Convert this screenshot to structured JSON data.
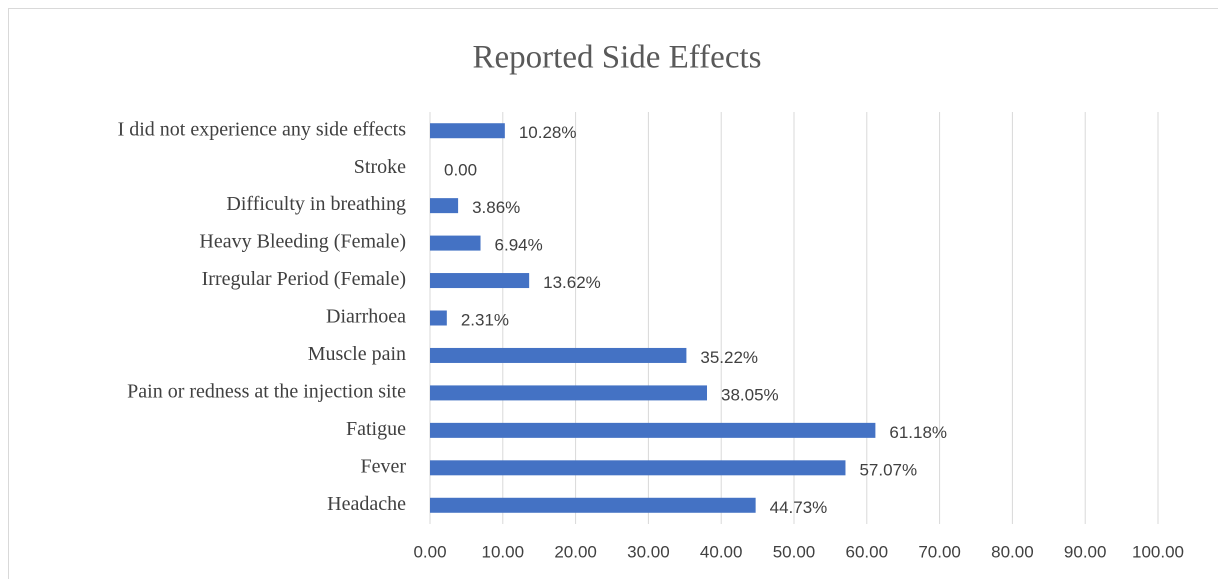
{
  "chart_data": {
    "type": "hbar",
    "title": "Reported Side Effects",
    "categories": [
      "I did not experience any side effects",
      "Stroke",
      "Difficulty in breathing",
      "Heavy Bleeding (Female)",
      "Irregular Period (Female)",
      "Diarrhoea",
      "Muscle pain",
      "Pain or redness at the injection site",
      "Fatigue",
      "Fever",
      "Headache"
    ],
    "values": [
      10.28,
      0,
      3.86,
      6.94,
      13.62,
      2.31,
      35.22,
      38.05,
      61.18,
      57.07,
      44.73
    ],
    "value_labels": [
      "10.28%",
      "0.00",
      "3.86%",
      "6.94%",
      "13.62%",
      "2.31%",
      "35.22%",
      "38.05%",
      "61.18%",
      "57.07%",
      "44.73%"
    ],
    "color": "#4472c4",
    "xlim": [
      0,
      100
    ],
    "xticks": [
      {
        "value": 0,
        "label": "0.00"
      },
      {
        "value": 10,
        "label": "10.00"
      },
      {
        "value": 20,
        "label": "20.00"
      },
      {
        "value": 30,
        "label": "30.00"
      },
      {
        "value": 40,
        "label": "40.00"
      },
      {
        "value": 50,
        "label": "50.00"
      },
      {
        "value": 60,
        "label": "60.00"
      },
      {
        "value": 70,
        "label": "70.00"
      },
      {
        "value": 80,
        "label": "80.00"
      },
      {
        "value": 90,
        "label": "90.00"
      },
      {
        "value": 100,
        "label": "100.00"
      }
    ],
    "grid": true
  }
}
